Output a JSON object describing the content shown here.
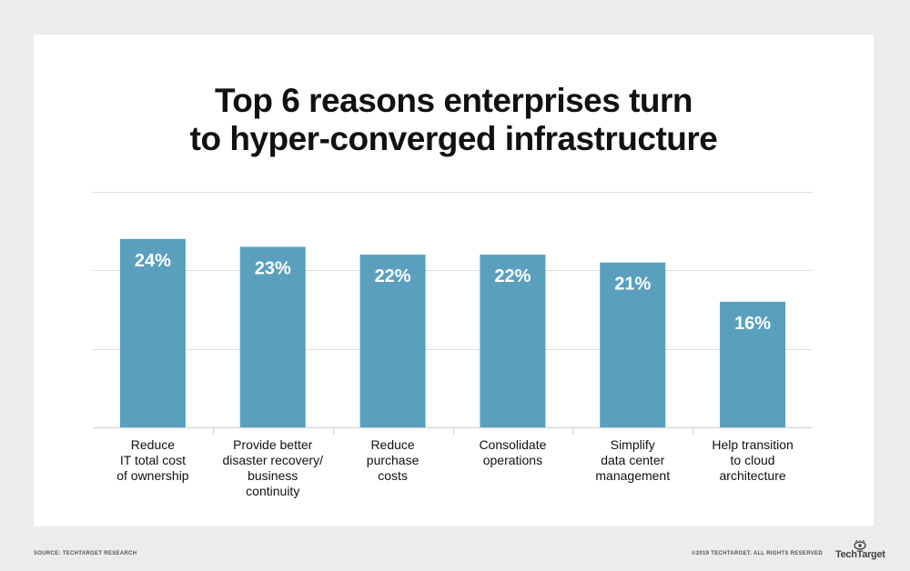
{
  "chart_data": {
    "type": "bar",
    "title": [
      "Top 6 reasons enterprises turn",
      "to hyper-converged infrastructure"
    ],
    "categories": [
      [
        "Reduce",
        "IT total cost",
        "of ownership"
      ],
      [
        "Provide better",
        "disaster recovery/",
        "business",
        "continuity"
      ],
      [
        "Reduce",
        "purchase",
        "costs"
      ],
      [
        "Consolidate",
        "operations"
      ],
      [
        "Simplify",
        "data center",
        "management"
      ],
      [
        "Help transition",
        "to cloud",
        "architecture"
      ]
    ],
    "values": [
      24,
      23,
      22,
      22,
      21,
      16
    ],
    "value_labels": [
      "24%",
      "23%",
      "22%",
      "22%",
      "21%",
      "16%"
    ],
    "ylim": [
      0,
      30
    ],
    "grid": true,
    "bar_color": "#5b9fbf"
  },
  "footer": {
    "source": "SOURCE: TECHTARGET RESEARCH",
    "copyright": "©2019 TECHTARGET. ALL RIGHTS RESERVED",
    "logo": "TechTarget",
    "logo_icon": "techtarget-eye-icon"
  },
  "colors": {
    "background": "#ececec",
    "card": "#ffffff",
    "grid": "#dddddd",
    "text": "#111111"
  }
}
